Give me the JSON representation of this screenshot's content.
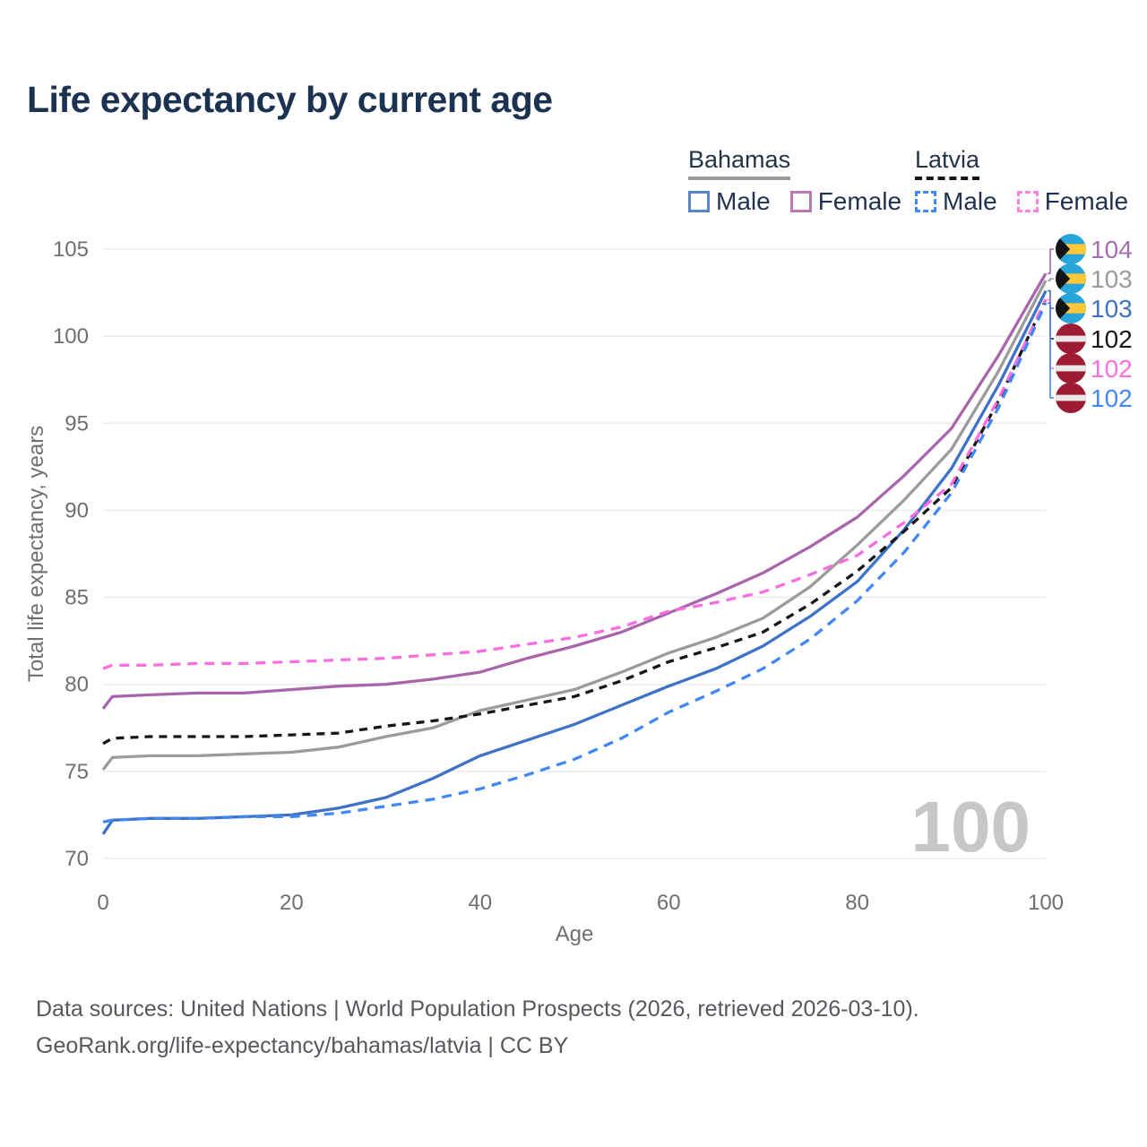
{
  "header": {
    "title": "Life expectancy by current age"
  },
  "legend": {
    "groups": [
      {
        "name": "Bahamas",
        "line_style": "solid",
        "underline_color": "#9a9a9a",
        "items": [
          {
            "label": "Male",
            "color": "#5b84c6",
            "dashed": false
          },
          {
            "label": "Female",
            "color": "#b77ab4",
            "dashed": false
          }
        ]
      },
      {
        "name": "Latvia",
        "line_style": "dashed",
        "underline_color": "#161616",
        "items": [
          {
            "label": "Male",
            "color": "#4288f5",
            "dashed": true
          },
          {
            "label": "Female",
            "color": "#fc85e4",
            "dashed": true
          }
        ]
      }
    ]
  },
  "chart_data": {
    "type": "line",
    "title": "Life expectancy by current age",
    "xlabel": "Age",
    "ylabel": "Total life expectancy, years",
    "xlim": [
      0,
      100
    ],
    "ylim": [
      70,
      105
    ],
    "x_ticks": [
      0,
      20,
      40,
      60,
      80,
      100
    ],
    "y_ticks": [
      70,
      75,
      80,
      85,
      90,
      95,
      100,
      105
    ],
    "grid": "horizontal",
    "gridline_color": "#ececee",
    "legend_position": "top-right",
    "watermark": "100",
    "ages": [
      0,
      1,
      5,
      10,
      15,
      20,
      25,
      30,
      35,
      40,
      45,
      50,
      55,
      60,
      65,
      70,
      75,
      80,
      85,
      90,
      95,
      100
    ],
    "series": [
      {
        "name": "Bahamas Female",
        "country": "Bahamas",
        "flag": "bahamas",
        "color": "#a865ab",
        "dashed": false,
        "dash": "",
        "end_label": "104",
        "label_color": "#a46fae",
        "values": [
          78.6,
          79.3,
          79.4,
          79.5,
          79.5,
          79.7,
          79.9,
          80.0,
          80.3,
          80.7,
          81.5,
          82.2,
          83.0,
          84.1,
          85.2,
          86.4,
          87.9,
          89.6,
          92.0,
          94.7,
          98.9,
          103.6
        ]
      },
      {
        "name": "Bahamas",
        "country": "Bahamas",
        "flag": "bahamas",
        "color": "#9b9b9b",
        "dashed": false,
        "dash": "",
        "end_label": "103",
        "label_color": "#9b9b9b",
        "values": [
          75.1,
          75.8,
          75.9,
          75.9,
          76.0,
          76.1,
          76.4,
          77.0,
          77.5,
          78.5,
          79.1,
          79.7,
          80.7,
          81.8,
          82.7,
          83.8,
          85.6,
          88.0,
          90.6,
          93.5,
          98.0,
          103.2
        ]
      },
      {
        "name": "Bahamas Male",
        "country": "Bahamas",
        "flag": "bahamas",
        "color": "#3e72c4",
        "dashed": false,
        "dash": "",
        "end_label": "103",
        "label_color": "#3e72c4",
        "values": [
          71.4,
          72.2,
          72.3,
          72.3,
          72.4,
          72.5,
          72.9,
          73.5,
          74.6,
          75.9,
          76.8,
          77.7,
          78.8,
          79.9,
          80.9,
          82.2,
          83.9,
          85.9,
          88.9,
          92.4,
          97.2,
          102.6
        ]
      },
      {
        "name": "Latvia",
        "country": "Latvia",
        "flag": "latvia",
        "color": "#161616",
        "dashed": true,
        "dash": "9 7",
        "end_label": "102",
        "label_color": "#161616",
        "values": [
          76.6,
          76.9,
          77.0,
          77.0,
          77.0,
          77.1,
          77.2,
          77.6,
          77.9,
          78.3,
          78.8,
          79.3,
          80.2,
          81.3,
          82.1,
          83.0,
          84.6,
          86.5,
          88.8,
          91.3,
          96.3,
          102.1
        ]
      },
      {
        "name": "Latvia Female",
        "country": "Latvia",
        "flag": "latvia",
        "color": "#fa6ee0",
        "dashed": true,
        "dash": "11 8",
        "end_label": "102",
        "label_color": "#fa6ee0",
        "values": [
          80.9,
          81.1,
          81.1,
          81.2,
          81.2,
          81.3,
          81.4,
          81.5,
          81.7,
          81.9,
          82.3,
          82.7,
          83.3,
          84.2,
          84.7,
          85.3,
          86.3,
          87.4,
          89.3,
          91.5,
          96.4,
          102.1
        ]
      },
      {
        "name": "Latvia Male",
        "country": "Latvia",
        "flag": "latvia",
        "color": "#4288f5",
        "dashed": true,
        "dash": "11 8",
        "end_label": "102",
        "label_color": "#4288f5",
        "values": [
          72.1,
          72.2,
          72.3,
          72.3,
          72.4,
          72.4,
          72.6,
          73.0,
          73.4,
          74.0,
          74.8,
          75.7,
          76.9,
          78.4,
          79.6,
          80.9,
          82.6,
          84.8,
          87.6,
          91.0,
          95.9,
          101.9
        ]
      }
    ],
    "flag_colors": {
      "bahamas": {
        "aqua": "#28a6dc",
        "gold": "#ffc838",
        "black": "#141414"
      },
      "latvia": {
        "red": "#9d1c33",
        "white": "#e9e9e9"
      }
    }
  },
  "footer": {
    "line1": "Data sources: United Nations | World Population Prospects (2026, retrieved 2026-03-10).",
    "line2": "GeoRank.org/life-expectancy/bahamas/latvia | CC BY"
  }
}
